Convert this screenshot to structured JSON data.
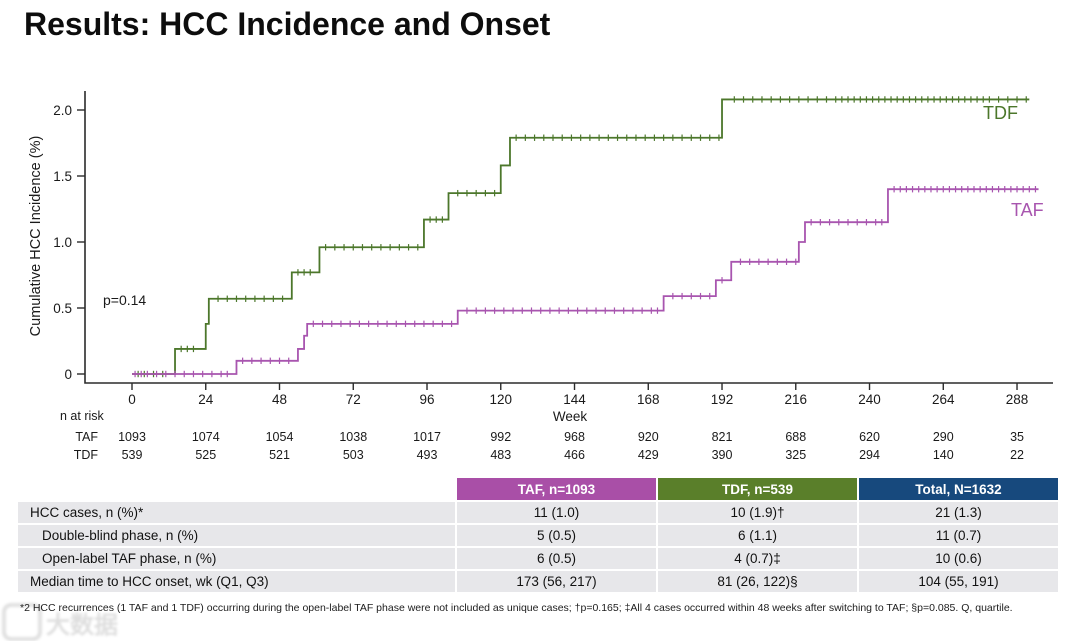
{
  "slide": {
    "title": "Results: HCC Incidence and Onset"
  },
  "chart_data": {
    "type": "line",
    "subtype": "kaplan-meier-step",
    "title": "",
    "xlabel": "Week",
    "ylabel": "Cumulative HCC Incidence (%)",
    "xlim": [
      0,
      300
    ],
    "ylim": [
      0,
      2.15
    ],
    "grid": false,
    "legend_position": "right-of-curves",
    "x_ticks": [
      0,
      24,
      48,
      72,
      96,
      120,
      144,
      168,
      192,
      216,
      240,
      264,
      288
    ],
    "y_ticks": [
      {
        "v": 0,
        "label": "0"
      },
      {
        "v": 0.5,
        "label": "0.5"
      },
      {
        "v": 1.0,
        "label": "1.0"
      },
      {
        "v": 1.5,
        "label": "1.5"
      },
      {
        "v": 2.0,
        "label": "2.0"
      }
    ],
    "annotation": "p=0.14",
    "series": [
      {
        "name": "TDF",
        "color": "#4c772b",
        "steps": [
          [
            0,
            0
          ],
          [
            14,
            0.19
          ],
          [
            24,
            0.38
          ],
          [
            25,
            0.57
          ],
          [
            52,
            0.77
          ],
          [
            61,
            0.96
          ],
          [
            95,
            1.17
          ],
          [
            103,
            1.37
          ],
          [
            120,
            1.58
          ],
          [
            123,
            1.79
          ],
          [
            192,
            2.08
          ],
          [
            292,
            2.08
          ]
        ],
        "censor_weeks": [
          2,
          4,
          7,
          10,
          16,
          18,
          20,
          28,
          31,
          34,
          37,
          40,
          43,
          46,
          49,
          54,
          56,
          58,
          63,
          66,
          69,
          72,
          75,
          78,
          81,
          84,
          87,
          90,
          93,
          97,
          99,
          101,
          106,
          109,
          112,
          115,
          118,
          125,
          128,
          131,
          134,
          137,
          140,
          143,
          146,
          149,
          152,
          155,
          158,
          161,
          164,
          167,
          170,
          173,
          176,
          179,
          182,
          185,
          188,
          191,
          196,
          199,
          202,
          205,
          208,
          211,
          214,
          217,
          220,
          223,
          226,
          229,
          231,
          233,
          235,
          237,
          239,
          241,
          243,
          245,
          247,
          249,
          251,
          253,
          255,
          257,
          259,
          261,
          263,
          265,
          267,
          269,
          271,
          273,
          275,
          277,
          279,
          282,
          285,
          288,
          291
        ]
      },
      {
        "name": "TAF",
        "color": "#a855af",
        "steps": [
          [
            0,
            0
          ],
          [
            34,
            0.1
          ],
          [
            54,
            0.19
          ],
          [
            56,
            0.29
          ],
          [
            57,
            0.38
          ],
          [
            106,
            0.48
          ],
          [
            173,
            0.59
          ],
          [
            190,
            0.71
          ],
          [
            195,
            0.85
          ],
          [
            217,
            1.0
          ],
          [
            219,
            1.15
          ],
          [
            246,
            1.4
          ],
          [
            295,
            1.4
          ]
        ],
        "censor_weeks": [
          1,
          3,
          5,
          8,
          11,
          14,
          17,
          20,
          23,
          26,
          29,
          31,
          36,
          39,
          42,
          45,
          48,
          51,
          59,
          62,
          65,
          68,
          71,
          74,
          77,
          80,
          83,
          86,
          89,
          92,
          95,
          98,
          101,
          104,
          109,
          112,
          115,
          118,
          121,
          124,
          127,
          130,
          133,
          136,
          139,
          142,
          145,
          148,
          151,
          154,
          157,
          160,
          163,
          166,
          169,
          171,
          176,
          179,
          182,
          185,
          188,
          192,
          198,
          201,
          204,
          207,
          210,
          213,
          216,
          221,
          224,
          227,
          230,
          233,
          236,
          239,
          242,
          244,
          248,
          250,
          252,
          254,
          256,
          258,
          260,
          262,
          264,
          266,
          268,
          270,
          272,
          274,
          276,
          278,
          280,
          282,
          284,
          286,
          288,
          290,
          292,
          294
        ]
      }
    ]
  },
  "n_at_risk": {
    "label": "n at risk",
    "weeks": [
      0,
      24,
      48,
      72,
      96,
      120,
      144,
      168,
      192,
      216,
      240,
      264,
      288
    ],
    "rows": [
      {
        "name": "TAF",
        "values": [
          "1093",
          "1074",
          "1054",
          "1038",
          "1017",
          "992",
          "968",
          "920",
          "821",
          "688",
          "620",
          "290",
          "35"
        ]
      },
      {
        "name": "TDF",
        "values": [
          "539",
          "525",
          "521",
          "503",
          "493",
          "483",
          "466",
          "429",
          "390",
          "325",
          "294",
          "140",
          "22"
        ]
      }
    ]
  },
  "summary_table": {
    "headers": [
      {
        "label": "TAF, n=1093",
        "color": "#a94fa7"
      },
      {
        "label": "TDF, n=539",
        "color": "#5a7f2a"
      },
      {
        "label": "Total, N=1632",
        "color": "#17497d"
      }
    ],
    "rows": [
      {
        "label": "HCC cases, n (%)*",
        "indent": false,
        "values": [
          "11 (1.0)",
          "10 (1.9)†",
          "21 (1.3)"
        ]
      },
      {
        "label": "Double-blind phase, n (%)",
        "indent": true,
        "values": [
          "5 (0.5)",
          "6 (1.1)",
          "11 (0.7)"
        ]
      },
      {
        "label": "Open-label TAF phase, n (%)",
        "indent": true,
        "values": [
          "6 (0.5)",
          "4 (0.7)‡",
          "10 (0.6)"
        ]
      },
      {
        "label": "Median time to HCC onset, wk (Q1, Q3)",
        "indent": false,
        "values": [
          "173 (56, 217)",
          "81 (26, 122)§",
          "104 (55, 191)"
        ]
      }
    ]
  },
  "footnote": "*2 HCC recurrences (1 TAF and 1 TDF) occurring during the open-label TAF phase were not included as unique cases; †p=0.165; ‡All 4 cases occurred within 48 weeks after switching to TAF; §p=0.085. Q, quartile.",
  "watermark": "大数据"
}
